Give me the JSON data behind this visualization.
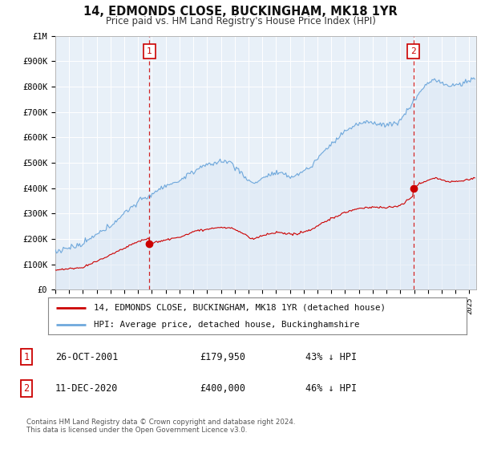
{
  "title": "14, EDMONDS CLOSE, BUCKINGHAM, MK18 1YR",
  "subtitle": "Price paid vs. HM Land Registry's House Price Index (HPI)",
  "ylabel_ticks": [
    "£0",
    "£100K",
    "£200K",
    "£300K",
    "£400K",
    "£500K",
    "£600K",
    "£700K",
    "£800K",
    "£900K",
    "£1M"
  ],
  "ytick_vals": [
    0,
    100000,
    200000,
    300000,
    400000,
    500000,
    600000,
    700000,
    800000,
    900000,
    1000000
  ],
  "ylim": [
    0,
    1000000
  ],
  "xlim_start": 1995.0,
  "xlim_end": 2025.5,
  "xtick_years": [
    1995,
    1996,
    1997,
    1998,
    1999,
    2000,
    2001,
    2002,
    2003,
    2004,
    2005,
    2006,
    2007,
    2008,
    2009,
    2010,
    2011,
    2012,
    2013,
    2014,
    2015,
    2016,
    2017,
    2018,
    2019,
    2020,
    2021,
    2022,
    2023,
    2024,
    2025
  ],
  "hpi_color": "#6fa8dc",
  "hpi_fill_color": "#dce8f5",
  "price_color": "#cc0000",
  "vline_color": "#cc0000",
  "transaction1_year": 2001.82,
  "transaction1_price": 179950,
  "transaction1_label": "1",
  "transaction2_year": 2020.95,
  "transaction2_price": 400000,
  "transaction2_label": "2",
  "legend_line1": "14, EDMONDS CLOSE, BUCKINGHAM, MK18 1YR (detached house)",
  "legend_line2": "HPI: Average price, detached house, Buckinghamshire",
  "table_rows": [
    {
      "num": "1",
      "date": "26-OCT-2001",
      "price": "£179,950",
      "pct": "43% ↓ HPI"
    },
    {
      "num": "2",
      "date": "11-DEC-2020",
      "price": "£400,000",
      "pct": "46% ↓ HPI"
    }
  ],
  "footnote": "Contains HM Land Registry data © Crown copyright and database right 2024.\nThis data is licensed under the Open Government Licence v3.0.",
  "background_color": "#ffffff",
  "plot_bg_color": "#e8f0f8",
  "grid_color": "#ffffff"
}
